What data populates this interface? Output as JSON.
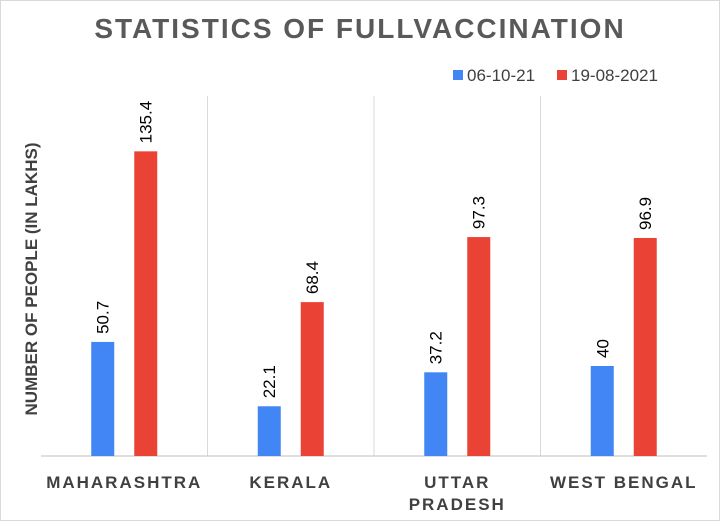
{
  "chart_data": {
    "type": "bar",
    "title": "STATISTICS OF FULLVACCINATION",
    "ylabel": "NUMBER OF PEOPLE (IN LAKHS)",
    "xlabel": "",
    "categories": [
      [
        "MAHARASHTRA"
      ],
      [
        "KERALA"
      ],
      [
        "UTTAR",
        "PRADESH"
      ],
      [
        "WEST BENGAL"
      ]
    ],
    "series": [
      {
        "name": "06-10-21",
        "color": "#4285f4",
        "values": [
          50.7,
          22.1,
          37.2,
          40
        ],
        "labels": [
          "50.7",
          "22.1",
          "37.2",
          "40"
        ]
      },
      {
        "name": "19-08-2021",
        "color": "#ea4335",
        "values": [
          135.4,
          68.4,
          97.3,
          96.9
        ],
        "labels": [
          "135.4",
          "68.4",
          "97.3",
          "96.9"
        ]
      }
    ],
    "ylim": [
      0,
      160
    ],
    "grid": false,
    "legend": "top-right"
  }
}
